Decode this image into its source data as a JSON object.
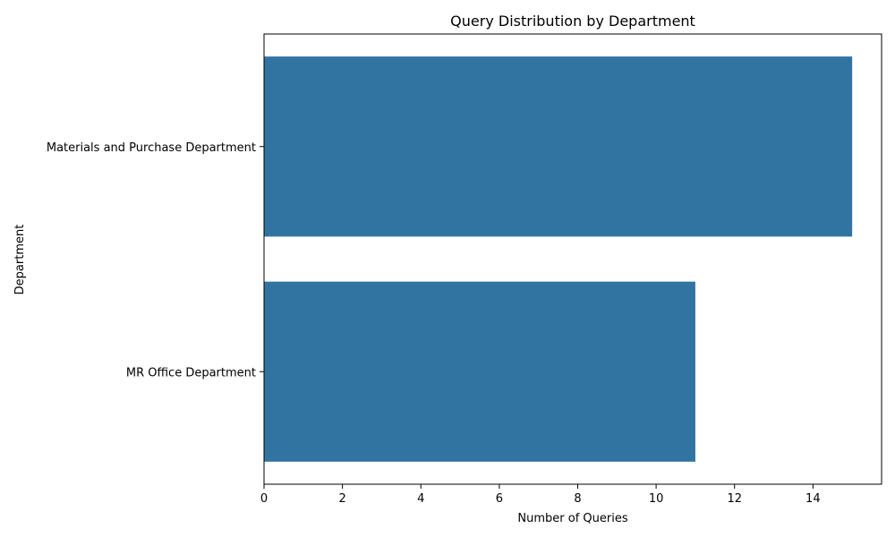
{
  "chart_data": {
    "type": "bar",
    "orientation": "horizontal",
    "title": "Query Distribution by Department",
    "xlabel": "Number of Queries",
    "ylabel": "Department",
    "categories": [
      "Materials and Purchase Department",
      "MR Office Department"
    ],
    "values": [
      15,
      11
    ],
    "xlim": [
      0,
      15.75
    ],
    "xticks": [
      "0",
      "2",
      "4",
      "6",
      "8",
      "10",
      "12",
      "14"
    ],
    "grid": false,
    "legend": "none",
    "bar_color": "#3274a1"
  }
}
